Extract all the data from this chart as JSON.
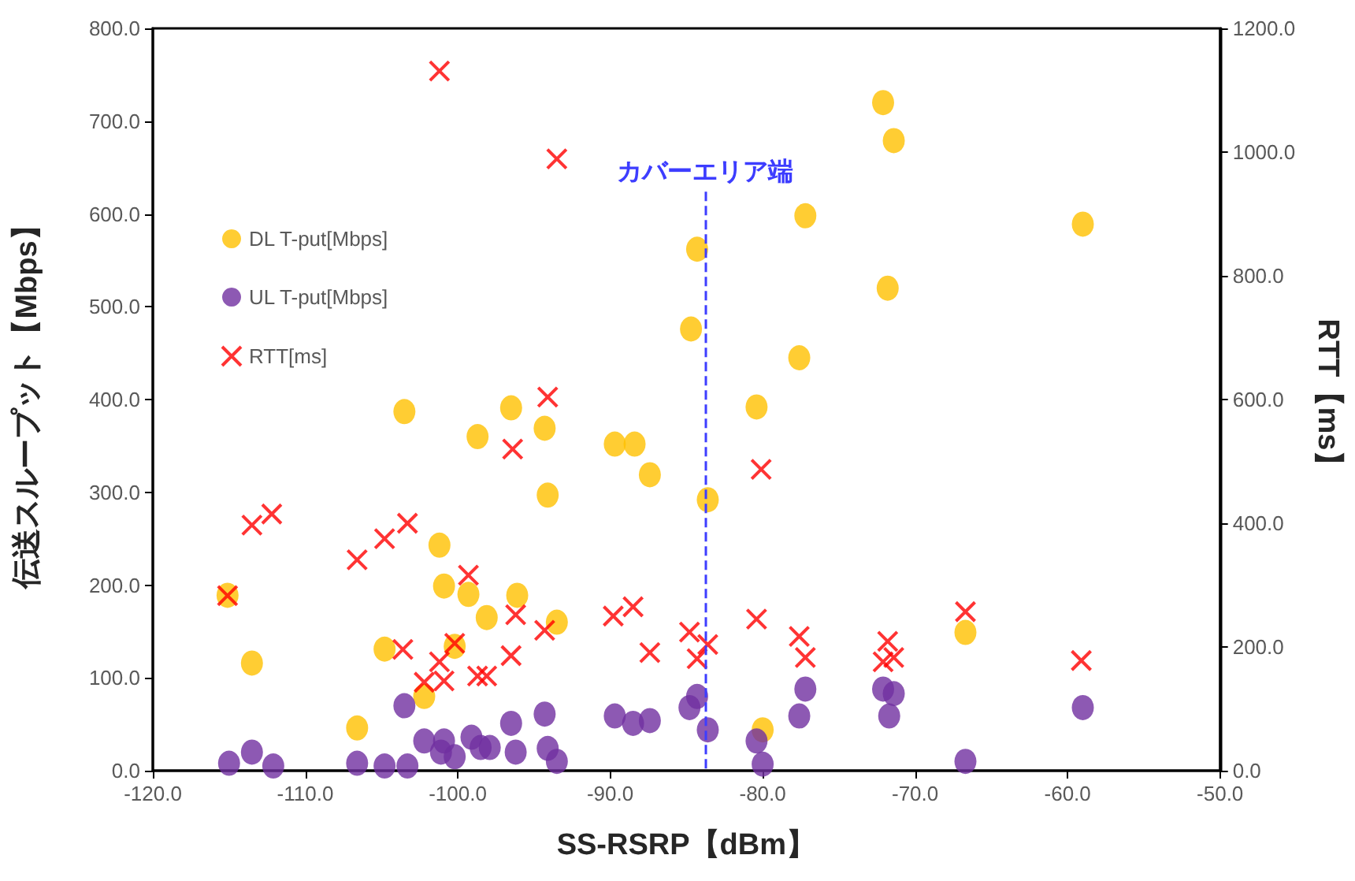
{
  "chart_data": {
    "type": "scatter",
    "xlabel": "SS-RSRP【dBm】",
    "ylabel": "伝送スループット【Mbps】",
    "y2label": "RTT【ms】",
    "xlim": [
      -120,
      -50
    ],
    "xticks": [
      {
        "value": -120,
        "label": "-120.0"
      },
      {
        "value": -110,
        "label": "-110.0"
      },
      {
        "value": -100,
        "label": "-100.0"
      },
      {
        "value": -90,
        "label": "-90.0"
      },
      {
        "value": -80,
        "label": "-80.0"
      },
      {
        "value": -70,
        "label": "-70.0"
      },
      {
        "value": -60,
        "label": "-60.0"
      },
      {
        "value": -50,
        "label": "-50.0"
      }
    ],
    "ylim": [
      0,
      800
    ],
    "yticks": [
      {
        "value": 0,
        "label": "0.0"
      },
      {
        "value": 100,
        "label": "100.0"
      },
      {
        "value": 200,
        "label": "200.0"
      },
      {
        "value": 300,
        "label": "300.0"
      },
      {
        "value": 400,
        "label": "400.0"
      },
      {
        "value": 500,
        "label": "500.0"
      },
      {
        "value": 600,
        "label": "600.0"
      },
      {
        "value": 700,
        "label": "700.0"
      },
      {
        "value": 800,
        "label": "800.0"
      }
    ],
    "y2lim": [
      0,
      1200
    ],
    "y2ticks": [
      {
        "value": 0,
        "label": "0.0"
      },
      {
        "value": 200,
        "label": "200.0"
      },
      {
        "value": 400,
        "label": "400.0"
      },
      {
        "value": 600,
        "label": "600.0"
      },
      {
        "value": 800,
        "label": "800.0"
      },
      {
        "value": 1000,
        "label": "1000.0"
      },
      {
        "value": 1200,
        "label": "1200.0"
      }
    ],
    "grid": false,
    "legend": "left",
    "ref_lines": [
      {
        "axis": "x",
        "value": -83.8,
        "label": "カバーエリア端",
        "color": "#3d3dff",
        "line_style": "dashed"
      }
    ],
    "series": [
      {
        "name": "DL T-put[Mbps]",
        "color": "#ffc000",
        "marker": "circle",
        "x": [
          -115.1,
          -113.5,
          -106.6,
          -104.8,
          -103.5,
          -103.3,
          -102.2,
          -101.2,
          -100.9,
          -100.2,
          -98.7,
          -99.3,
          -98.1,
          -96.5,
          -96.1,
          -94.3,
          -94.1,
          -93.5,
          -89.7,
          -88.4,
          -87.4,
          -84.7,
          -84.3,
          -83.6,
          -80.4,
          -80.0,
          -77.6,
          -77.2,
          -72.1,
          -71.4,
          -71.8,
          -66.7,
          -59.0
        ],
        "values": [
          189,
          116,
          46,
          131,
          387,
          null,
          80,
          243,
          199,
          134,
          360,
          190,
          165,
          391,
          189,
          369,
          297,
          160,
          352,
          352,
          319,
          476,
          562,
          292,
          392,
          44,
          445,
          598,
          720,
          679,
          520,
          149,
          589
        ]
      },
      {
        "name": "UL T-put[Mbps]",
        "color": "#7030a0",
        "marker": "circle",
        "x": [
          -115.0,
          -113.5,
          -112.1,
          -106.6,
          -104.8,
          -103.3,
          -103.5,
          -102.2,
          -100.9,
          -101.1,
          -100.2,
          -99.1,
          -98.5,
          -97.9,
          -96.5,
          -96.2,
          -94.3,
          -94.1,
          -93.5,
          -89.7,
          -88.5,
          -87.4,
          -84.8,
          -84.3,
          -83.6,
          -80.4,
          -80.0,
          -77.6,
          -77.2,
          -72.1,
          -71.4,
          -71.7,
          -66.7,
          -59.0
        ],
        "values": [
          8,
          20,
          5,
          8,
          5,
          5,
          70,
          32,
          32,
          20,
          15,
          36,
          25,
          25,
          51,
          20,
          61,
          24,
          10,
          59,
          51,
          54,
          68,
          80,
          44,
          32,
          7,
          59,
          88,
          88,
          83,
          59,
          10,
          68
        ]
      },
      {
        "name": "RTT[ms]",
        "color": "#ff0000",
        "marker": "cross",
        "axis": "y2",
        "x": [
          -101.2,
          -93.5,
          -94.1,
          -115.1,
          -113.5,
          -112.2,
          -106.6,
          -104.8,
          -103.3,
          -96.4,
          -99.3,
          -96.2,
          -103.6,
          -100.2,
          -101.2,
          -102.2,
          -100.9,
          -98.7,
          -98.1,
          -96.5,
          -94.3,
          -89.8,
          -88.5,
          -87.4,
          -84.8,
          -84.3,
          -83.6,
          -80.4,
          -80.1,
          -77.6,
          -77.2,
          -71.8,
          -72.1,
          -71.4,
          -66.7,
          -59.1
        ],
        "values": [
          1131,
          989,
          604,
          283,
          397,
          415,
          341,
          375,
          400,
          520,
          316,
          252,
          196,
          206,
          176,
          143,
          145,
          153,
          153,
          186,
          227,
          250,
          265,
          191,
          224,
          181,
          204,
          245,
          487,
          217,
          183,
          209,
          176,
          183,
          257,
          178
        ]
      }
    ]
  }
}
